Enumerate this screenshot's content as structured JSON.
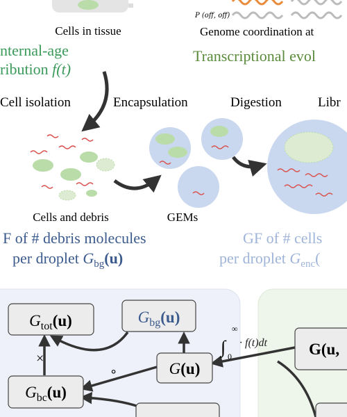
{
  "top": {
    "cells_caption": "Cells in tissue",
    "prob_label": "P (off, off)",
    "genome_caption": "Genome coordination at",
    "age_line1": "nternal-age",
    "age_line2": "ribution",
    "age_func": "f(t)",
    "evolution": "Transcriptional evol"
  },
  "steps": [
    "Cell isolation",
    "Encapsulation",
    "Digestion",
    "Libr"
  ],
  "captions": {
    "debris": "Cells and debris",
    "gems": "GEMs"
  },
  "gf_debris": {
    "line1": "F of # debris molecules",
    "line2": "per droplet",
    "symbol": "G",
    "sub": "bg",
    "arg": "(u)"
  },
  "gf_cells": {
    "line1": "GF of # cells",
    "line2": "per droplet",
    "symbol": "G",
    "sub": "enc",
    "arg": "("
  },
  "nodes": [
    {
      "symbol": "G",
      "sub": "tot",
      "arg": "(u)"
    },
    {
      "symbol": "G",
      "sub": "bg",
      "arg": "(u)"
    },
    {
      "symbol": "G",
      "arg": "(u)"
    },
    {
      "symbol": "G",
      "sub": "bc",
      "arg": "(u)"
    },
    {
      "symbol": "G(u,"
    }
  ],
  "operators": {
    "times": "×",
    "compose": "∘",
    "integral": "∫",
    "upper": "∞",
    "lower": "0",
    "integrand": "· f(t)dt"
  }
}
